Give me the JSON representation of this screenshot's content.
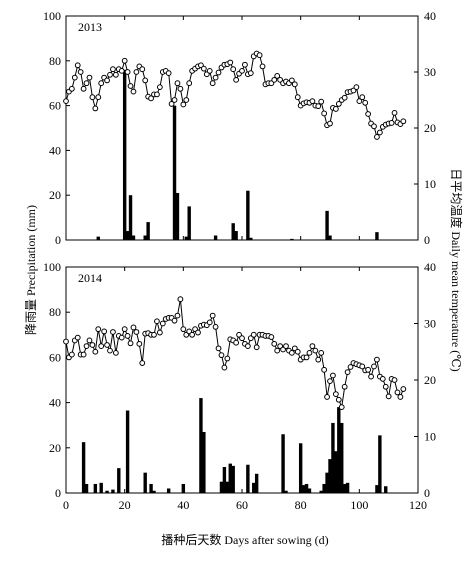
{
  "figure": {
    "ylabel_left": "降雨量 Precipitation (mm)",
    "ylabel_right": "日平均温度 Daily mean temperature (℃)",
    "xlabel": "播种后天数 Days after sowing (d)"
  },
  "chart_data": [
    {
      "type": "bar+line",
      "title": "2013",
      "xlim": [
        0,
        120
      ],
      "ylim_left": [
        0,
        100
      ],
      "ylim_right": [
        0,
        40
      ],
      "x_ticks": [],
      "y_ticks_left": [
        "0",
        "20",
        "40",
        "60",
        "80",
        "100"
      ],
      "y_ticks_right": [
        "0",
        "10",
        "20",
        "30",
        "40"
      ],
      "series": [
        {
          "kind": "bar",
          "axis": "left",
          "x": [
            11,
            20,
            21,
            22,
            23,
            27,
            28,
            37,
            38,
            41,
            42,
            51,
            57,
            58,
            62,
            63,
            77,
            89,
            90,
            106
          ],
          "values": [
            1.5,
            76,
            4,
            20,
            2,
            2,
            8,
            60,
            21,
            1.5,
            15,
            2,
            7.5,
            4,
            22,
            1,
            0.5,
            13,
            2,
            3.5
          ]
        },
        {
          "kind": "line",
          "axis": "right",
          "x": [
            0,
            1,
            2,
            3,
            4,
            5,
            6,
            7,
            8,
            9,
            10,
            11,
            12,
            13,
            14,
            15,
            16,
            17,
            18,
            19,
            20,
            21,
            22,
            23,
            24,
            25,
            26,
            27,
            28,
            29,
            30,
            31,
            32,
            33,
            34,
            35,
            36,
            37,
            38,
            39,
            40,
            41,
            42,
            43,
            44,
            45,
            46,
            47,
            48,
            49,
            50,
            51,
            52,
            53,
            54,
            55,
            56,
            57,
            58,
            59,
            60,
            61,
            62,
            63,
            64,
            65,
            66,
            67,
            68,
            69,
            70,
            71,
            72,
            73,
            74,
            75,
            76,
            77,
            78,
            79,
            80,
            81,
            82,
            83,
            84,
            85,
            86,
            87,
            88,
            89,
            90,
            91,
            92,
            93,
            94,
            95,
            96,
            97,
            98,
            99,
            100,
            101,
            102,
            103,
            104,
            105,
            106,
            107,
            108,
            109,
            110,
            111,
            112,
            113,
            114,
            115
          ],
          "values": [
            24.8,
            26.5,
            27,
            29,
            31.2,
            30,
            27,
            28,
            29,
            25.5,
            23.5,
            25.5,
            28,
            29,
            28.5,
            29.5,
            30.5,
            29.5,
            30.5,
            30.2,
            32,
            30,
            27.5,
            26.5,
            30,
            31,
            30.5,
            28.5,
            25.6,
            25.3,
            26,
            26,
            27.3,
            30,
            30.2,
            29.8,
            24.3,
            25,
            28,
            27,
            24.2,
            25,
            28,
            30.2,
            30.6,
            31,
            31.2,
            30.6,
            29.6,
            30.2,
            28,
            29,
            29.9,
            30.8,
            31.3,
            31.4,
            31.7,
            30.5,
            28.6,
            29.7,
            30.2,
            31.3,
            29.6,
            29.8,
            32.8,
            33.3,
            33,
            31,
            27.8,
            28,
            28,
            28.6,
            29.3,
            28.6,
            28,
            28.3,
            28,
            28.5,
            27.8,
            25.5,
            24,
            24.4,
            24.6,
            24.5,
            24.8,
            24,
            23.9,
            24.7,
            22.6,
            20.5,
            20.8,
            23.6,
            23.4,
            24.3,
            25,
            25.4,
            26.4,
            26.5,
            26.7,
            27.3,
            24.8,
            25.5,
            24.5,
            22.5,
            20.8,
            20.3,
            18.4,
            19.2,
            20.2,
            20.6,
            20.8,
            20.9,
            22.7,
            21,
            20.7,
            21.2
          ]
        }
      ]
    },
    {
      "type": "bar+line",
      "title": "2014",
      "xlim": [
        0,
        120
      ],
      "ylim_left": [
        0,
        100
      ],
      "ylim_right": [
        0,
        40
      ],
      "x_ticks": [
        "0",
        "20",
        "40",
        "60",
        "80",
        "100",
        "120"
      ],
      "y_ticks_left": [
        "0",
        "20",
        "40",
        "60",
        "80",
        "100"
      ],
      "y_ticks_right": [
        "0",
        "10",
        "20",
        "30",
        "40"
      ],
      "series": [
        {
          "kind": "bar",
          "axis": "left",
          "x": [
            6,
            7,
            10,
            12,
            14,
            16,
            18,
            21,
            27,
            29,
            30,
            35,
            40,
            46,
            47,
            53,
            54,
            55,
            56,
            57,
            62,
            64,
            65,
            74,
            75,
            80,
            81,
            82,
            83,
            87,
            88,
            89,
            90,
            91,
            92,
            93,
            94,
            95,
            96,
            106,
            107,
            109
          ],
          "values": [
            22.5,
            4,
            4,
            4.5,
            1,
            1.5,
            11,
            36.5,
            9,
            4,
            1,
            2,
            4,
            42,
            27,
            5,
            11.5,
            5,
            13,
            12,
            12.5,
            4.5,
            8.5,
            26,
            1,
            22,
            3.5,
            4,
            2,
            1,
            4,
            9,
            15,
            31,
            18.5,
            38,
            31,
            4,
            4.5,
            3.5,
            25.5,
            3
          ]
        },
        {
          "kind": "line",
          "axis": "right",
          "x": [
            0,
            1,
            2,
            3,
            4,
            5,
            6,
            7,
            8,
            9,
            10,
            11,
            12,
            13,
            14,
            15,
            16,
            17,
            18,
            19,
            20,
            21,
            22,
            23,
            24,
            25,
            26,
            27,
            28,
            29,
            30,
            31,
            32,
            33,
            34,
            35,
            36,
            37,
            38,
            39,
            40,
            41,
            42,
            43,
            44,
            45,
            46,
            47,
            48,
            49,
            50,
            51,
            52,
            53,
            54,
            55,
            56,
            57,
            58,
            59,
            60,
            61,
            62,
            63,
            64,
            65,
            66,
            67,
            68,
            69,
            70,
            71,
            72,
            73,
            74,
            75,
            76,
            77,
            78,
            79,
            80,
            81,
            82,
            83,
            84,
            85,
            86,
            87,
            88,
            89,
            90,
            91,
            92,
            93,
            94,
            95,
            96,
            97,
            98,
            99,
            100,
            101,
            102,
            103,
            104,
            105,
            106,
            107,
            108,
            109,
            110,
            111,
            112,
            113,
            114,
            115
          ],
          "values": [
            26.8,
            24,
            24.5,
            27,
            27.5,
            24.5,
            24.5,
            26,
            27,
            26.2,
            25,
            29,
            26,
            28.6,
            26.2,
            25.2,
            28.5,
            24.8,
            27.8,
            27.5,
            29,
            27.8,
            26.5,
            29.3,
            28.5,
            26.4,
            23,
            28.2,
            28.3,
            28,
            28,
            30.4,
            28.4,
            30,
            30.8,
            31,
            31,
            30.5,
            31.4,
            34.3,
            29,
            28,
            28.6,
            28,
            29,
            28.4,
            29.6,
            29.8,
            29.7,
            30.2,
            31.4,
            29.4,
            25.6,
            24.4,
            22.2,
            23.8,
            27.2,
            27,
            26.6,
            28,
            27.4,
            26.4,
            26,
            27.4,
            28,
            25.8,
            28,
            28,
            27.8,
            27.8,
            27.6,
            26.4,
            25.2,
            26,
            25.4,
            26,
            25.2,
            24.8,
            25.6,
            25,
            23.6,
            24,
            24,
            24.8,
            26,
            25.2,
            23.6,
            24.8,
            21.8,
            17,
            19.8,
            20.8,
            17.5,
            16.5,
            15.2,
            18.8,
            21.4,
            22.3,
            23,
            22.8,
            22.6,
            22.4,
            21.7,
            21.8,
            20.6,
            22.4,
            23.6,
            20.6,
            20.2,
            18.8,
            17.1,
            20.2,
            20,
            17.8,
            17,
            18.4
          ]
        }
      ]
    }
  ]
}
